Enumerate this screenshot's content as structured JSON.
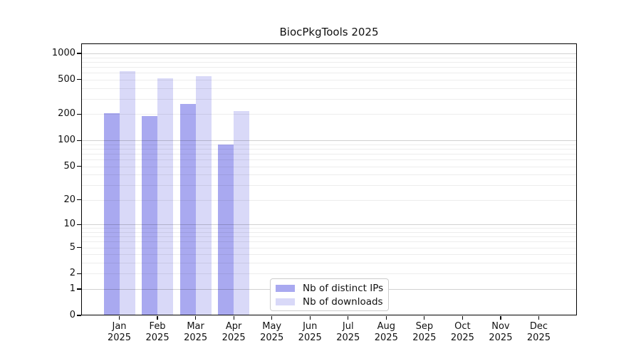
{
  "chart_data": {
    "type": "bar",
    "title": "BiocPkgTools 2025",
    "categories": [
      "Jan 2025",
      "Feb 2025",
      "Mar 2025",
      "Apr 2025",
      "May 2025",
      "Jun 2025",
      "Jul 2025",
      "Aug 2025",
      "Sep 2025",
      "Oct 2025",
      "Nov 2025",
      "Dec 2025"
    ],
    "category_line1": [
      "Jan",
      "Feb",
      "Mar",
      "Apr",
      "May",
      "Jun",
      "Jul",
      "Aug",
      "Sep",
      "Oct",
      "Nov",
      "Dec"
    ],
    "category_line2": "2025",
    "series": [
      {
        "name": "Nb of distinct IPs",
        "color": "#a9a9f0",
        "values": [
          207,
          192,
          265,
          90,
          null,
          null,
          null,
          null,
          null,
          null,
          null,
          null
        ]
      },
      {
        "name": "Nb of downloads",
        "color": "#d9d9f8",
        "values": [
          628,
          515,
          550,
          217,
          null,
          null,
          null,
          null,
          null,
          null,
          null,
          null
        ]
      }
    ],
    "xlabel": "",
    "ylabel": "",
    "y_scale": "log1p",
    "y_ticks": [
      0,
      1,
      2,
      5,
      10,
      20,
      50,
      100,
      200,
      500,
      1000
    ],
    "ylim": [
      0,
      1300
    ],
    "grid": "horizontal major+minor",
    "legend_position": "inside bottom-center",
    "colors": {
      "axis": "#000000",
      "background": "#ffffff",
      "grid_major": "rgba(0,0,0,0.18)",
      "grid_minor": "rgba(0,0,0,0.07)"
    }
  }
}
